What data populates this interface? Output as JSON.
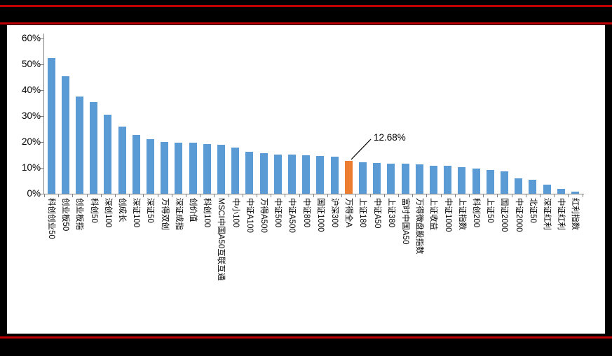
{
  "page": {
    "background": "#000000",
    "rule_color": "#C00000",
    "panel_background": "#FFFFFF"
  },
  "chart_data": {
    "type": "bar",
    "title": "",
    "xlabel": "",
    "ylabel": "",
    "ylim": [
      0,
      60
    ],
    "yticks": [
      "0%",
      "10%",
      "20%",
      "30%",
      "40%",
      "50%",
      "60%"
    ],
    "grid": false,
    "legend": null,
    "bar_color": "#5B9BD5",
    "highlight_color": "#ED7D31",
    "highlight_index": 21,
    "annotation": {
      "text": "12.68%",
      "target_label": "万得全A"
    },
    "categories": [
      "科创创业50",
      "创业板50",
      "创业板指",
      "科创50",
      "深创100",
      "创成长",
      "深证100",
      "深证50",
      "万得双创",
      "深证成指",
      "创价值",
      "科创100",
      "MSCI中国A50互联互通",
      "中小100",
      "中证A100",
      "万得A500",
      "中证500",
      "中证A500",
      "中证800",
      "国证1000",
      "沪深300",
      "万得全A",
      "上证180",
      "中证A50",
      "上证380",
      "富时中国A50",
      "万得微盘股指数",
      "上证收益",
      "中证1000",
      "上证指数",
      "科创200",
      "上证50",
      "国证2000",
      "中证2000",
      "北证50",
      "深证红利",
      "中证红利",
      "红利指数"
    ],
    "values": [
      52.4,
      45.4,
      37.5,
      35.5,
      30.5,
      26.0,
      22.6,
      21.0,
      20.1,
      19.8,
      19.7,
      19.2,
      18.8,
      17.9,
      16.3,
      15.6,
      15.2,
      15.2,
      14.8,
      14.5,
      14.2,
      12.68,
      12.2,
      11.9,
      11.6,
      11.5,
      11.4,
      10.7,
      10.7,
      10.2,
      9.8,
      9.3,
      8.6,
      5.9,
      5.3,
      3.5,
      1.9,
      0.8
    ]
  }
}
